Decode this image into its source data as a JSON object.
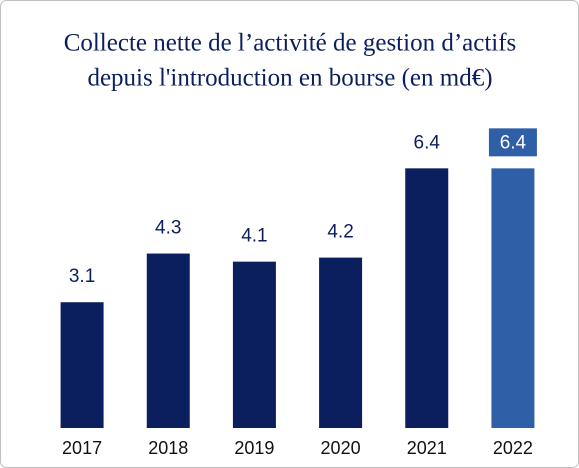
{
  "chart_data": {
    "type": "bar",
    "title": [
      "Collecte nette de l’activité de gestion d’actifs",
      "depuis l'introduction en bourse (en md€)"
    ],
    "categories": [
      "2017",
      "2018",
      "2019",
      "2020",
      "2021",
      "2022"
    ],
    "values": [
      3.1,
      4.3,
      4.1,
      4.2,
      6.4,
      6.4
    ],
    "color": "#0b1f5e",
    "highlight_index": 5,
    "highlight_color": "#2e5fa7",
    "ylim": [
      0,
      7
    ]
  }
}
